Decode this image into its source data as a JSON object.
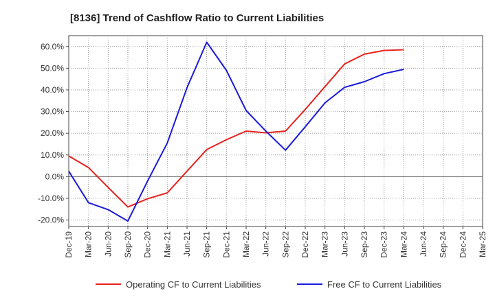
{
  "chart_data": {
    "type": "line",
    "title": "[8136]  Trend of Cashflow Ratio to Current Liabilities",
    "xlabel": "",
    "ylabel": "",
    "categories": [
      "Dec-19",
      "Mar-20",
      "Jun-20",
      "Sep-20",
      "Dec-20",
      "Mar-21",
      "Jun-21",
      "Sep-21",
      "Dec-21",
      "Mar-22",
      "Jun-22",
      "Sep-22",
      "Dec-22",
      "Mar-23",
      "Jun-23",
      "Sep-23",
      "Dec-23",
      "Mar-24",
      "Jun-24",
      "Sep-24",
      "Dec-24",
      "Mar-25"
    ],
    "ylim": [
      -23,
      65
    ],
    "yticks": [
      -20,
      -10,
      0,
      10,
      20,
      30,
      40,
      50,
      60
    ],
    "ytick_labels": [
      "-20.0%",
      "-10.0%",
      "0.0%",
      "10.0%",
      "20.0%",
      "30.0%",
      "40.0%",
      "50.0%",
      "60.0%"
    ],
    "grid": true,
    "legend_position": "bottom",
    "series": [
      {
        "name": "Operating CF to Current Liabilities",
        "color": "#e8211d",
        "values": [
          9.5,
          4.2,
          -5.0,
          -14.0,
          -10.2,
          -7.5,
          2.5,
          12.5,
          17.0,
          21.0,
          20.2,
          21.0,
          31.0,
          41.5,
          52.0,
          56.5,
          58.2,
          58.5,
          null,
          null,
          null,
          null
        ]
      },
      {
        "name": "Free CF to Current Liabilities",
        "color": "#1a1adb",
        "values": [
          2.5,
          -12.0,
          -15.2,
          -20.5,
          -2.0,
          15.5,
          41.0,
          62.0,
          49.0,
          30.5,
          21.0,
          12.2,
          23.0,
          34.0,
          41.2,
          43.8,
          47.5,
          49.5,
          null,
          null,
          null,
          null
        ]
      }
    ]
  }
}
